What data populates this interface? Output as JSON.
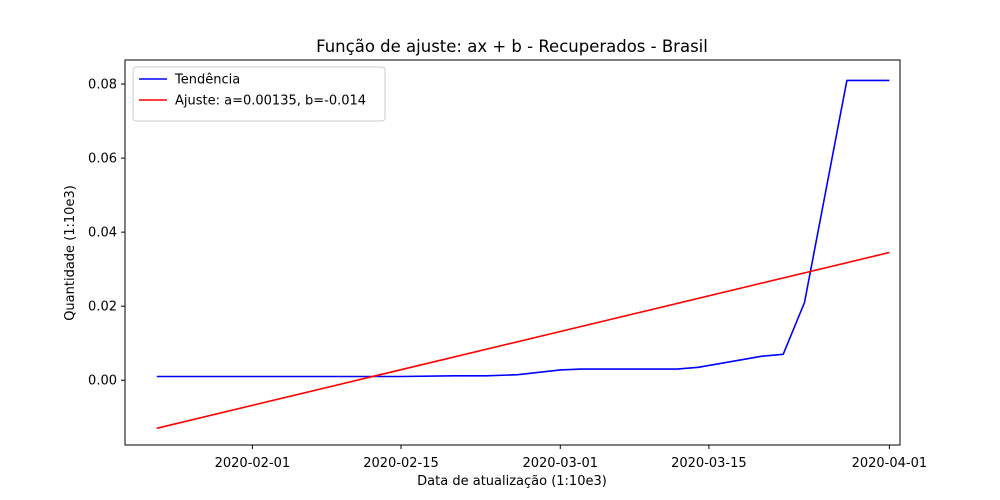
{
  "chart_data": {
    "type": "line",
    "title": "Função de ajuste: ax + b - Recuperados - Brasil",
    "xlabel": "Data de atualização (1:10e3)",
    "ylabel": "Quantidade (1:10e3)",
    "x_type": "date",
    "xlim": [
      "2020-01-20",
      "2020-04-02"
    ],
    "ylim": [
      -0.0175,
      0.0865
    ],
    "x_ticks": [
      "2020-02-01",
      "2020-02-15",
      "2020-03-01",
      "2020-03-15",
      "2020-04-01"
    ],
    "y_ticks": [
      0.0,
      0.02,
      0.04,
      0.06,
      0.08
    ],
    "y_tick_labels": [
      "0.00",
      "0.02",
      "0.04",
      "0.06",
      "0.08"
    ],
    "grid": false,
    "legend_position": "upper-left",
    "series": [
      {
        "name": "Tendência",
        "color": "#0000ff",
        "x": [
          "2020-01-23",
          "2020-02-05",
          "2020-02-15",
          "2020-02-20",
          "2020-02-23",
          "2020-02-26",
          "2020-03-01",
          "2020-03-03",
          "2020-03-12",
          "2020-03-14",
          "2020-03-20",
          "2020-03-22",
          "2020-03-24",
          "2020-03-26",
          "2020-03-28",
          "2020-04-01"
        ],
        "y": [
          0.001,
          0.001,
          0.001,
          0.0012,
          0.0012,
          0.0015,
          0.0028,
          0.003,
          0.003,
          0.0035,
          0.0065,
          0.007,
          0.021,
          0.051,
          0.081,
          0.081
        ]
      },
      {
        "name": "Ajuste: a=0.00135, b=-0.014",
        "color": "#ff0000",
        "x": [
          "2020-01-23",
          "2020-04-01"
        ],
        "y": [
          -0.013,
          0.0345
        ]
      }
    ]
  }
}
